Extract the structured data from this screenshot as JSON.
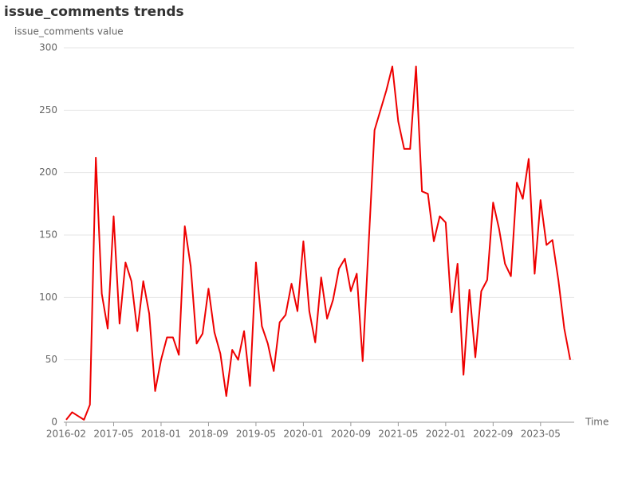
{
  "chart_data": {
    "type": "line",
    "title": "issue_comments trends",
    "y_label": "issue_comments value",
    "x_label": "Time",
    "categories": [
      "2016-02",
      null,
      null,
      null,
      null,
      null,
      null,
      null,
      "2017-05",
      null,
      null,
      null,
      null,
      null,
      null,
      null,
      "2018-01",
      null,
      null,
      null,
      null,
      null,
      null,
      null,
      "2018-09",
      null,
      null,
      null,
      null,
      null,
      null,
      null,
      "2019-05",
      null,
      null,
      null,
      null,
      null,
      null,
      null,
      "2020-01",
      null,
      null,
      null,
      null,
      null,
      null,
      null,
      "2020-09",
      null,
      null,
      null,
      null,
      null,
      null,
      null,
      "2021-05",
      null,
      null,
      null,
      null,
      null,
      null,
      null,
      "2022-01",
      null,
      null,
      null,
      null,
      null,
      null,
      null,
      "2022-09",
      null,
      null,
      null,
      null,
      null,
      null,
      null,
      "2023-05",
      null,
      null,
      null,
      null,
      null
    ],
    "series": [
      {
        "name": "issue_comments",
        "color": "#ee0000",
        "values": [
          2,
          8,
          5,
          2,
          14,
          212,
          103,
          75,
          165,
          79,
          128,
          113,
          73,
          113,
          87,
          25,
          50,
          68,
          68,
          54,
          157,
          125,
          63,
          71,
          107,
          72,
          55,
          21,
          58,
          50,
          73,
          29,
          128,
          77,
          63,
          41,
          80,
          86,
          111,
          89,
          145,
          89,
          64,
          116,
          83,
          98,
          123,
          131,
          105,
          119,
          49,
          142,
          234,
          250,
          266,
          285,
          241,
          219,
          219,
          285,
          185,
          183,
          145,
          165,
          160,
          88,
          127,
          38,
          106,
          52,
          105,
          114,
          176,
          155,
          127,
          117,
          192,
          179,
          211,
          119,
          178,
          142,
          146,
          114,
          75,
          50
        ]
      }
    ],
    "ylim": [
      0,
      300
    ],
    "yticks": [
      0,
      50,
      100,
      150,
      200,
      250,
      300
    ],
    "grid": true
  }
}
